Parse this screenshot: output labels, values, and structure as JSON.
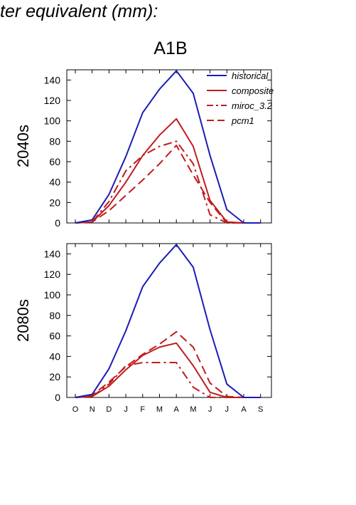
{
  "page": {
    "title": "ter equivalent (mm):",
    "scenario": "A1B"
  },
  "chart_data": [
    {
      "type": "line",
      "panel_label": "2040s",
      "categories": [
        "O",
        "N",
        "D",
        "J",
        "F",
        "M",
        "A",
        "M",
        "J",
        "J",
        "A",
        "S"
      ],
      "ylim": [
        0,
        150
      ],
      "yticks": [
        0,
        20,
        40,
        60,
        80,
        100,
        120,
        140
      ],
      "grid": false,
      "legend_position": "top-right",
      "series": [
        {
          "name": "historical",
          "color": "#1c1cb4",
          "dash": "solid",
          "values": [
            0,
            3,
            28,
            65,
            108,
            131,
            149,
            127,
            66,
            13,
            0,
            0
          ]
        },
        {
          "name": "composite",
          "color": "#c01c1c",
          "dash": "solid",
          "values": [
            0,
            1,
            17,
            40,
            66,
            86,
            102,
            75,
            22,
            1,
            0,
            0
          ]
        },
        {
          "name": "miroc_3.2",
          "color": "#c01c1c",
          "dash": "dashdot",
          "values": [
            0,
            1,
            21,
            51,
            66,
            75,
            80,
            58,
            8,
            0,
            0,
            0
          ]
        },
        {
          "name": "pcm1",
          "color": "#c01c1c",
          "dash": "dash",
          "values": [
            0,
            1,
            12,
            27,
            42,
            58,
            76,
            47,
            20,
            0,
            0,
            0
          ]
        }
      ]
    },
    {
      "type": "line",
      "panel_label": "2080s",
      "categories": [
        "O",
        "N",
        "D",
        "J",
        "F",
        "M",
        "A",
        "M",
        "J",
        "J",
        "A",
        "S"
      ],
      "ylim": [
        0,
        150
      ],
      "yticks": [
        0,
        20,
        40,
        60,
        80,
        100,
        120,
        140
      ],
      "grid": false,
      "series": [
        {
          "name": "historical",
          "color": "#1c1cb4",
          "dash": "solid",
          "values": [
            0,
            3,
            28,
            65,
            108,
            131,
            149,
            127,
            66,
            13,
            0,
            0
          ]
        },
        {
          "name": "composite",
          "color": "#c01c1c",
          "dash": "solid",
          "values": [
            0,
            1,
            11,
            27,
            41,
            49,
            53,
            31,
            5,
            0,
            0,
            0
          ]
        },
        {
          "name": "miroc_3.2",
          "color": "#c01c1c",
          "dash": "dashdot",
          "values": [
            0,
            1,
            13,
            31,
            34,
            34,
            34,
            10,
            0,
            0,
            0,
            0
          ]
        },
        {
          "name": "pcm1",
          "color": "#c01c1c",
          "dash": "dash",
          "values": [
            0,
            2,
            15,
            30,
            42,
            52,
            64,
            49,
            14,
            1,
            0,
            0
          ]
        }
      ]
    }
  ]
}
